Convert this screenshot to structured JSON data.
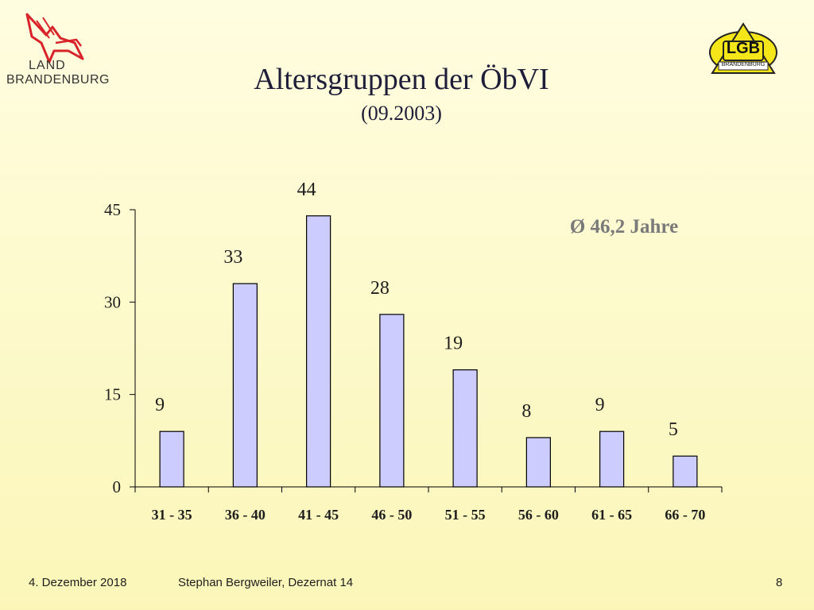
{
  "header": {
    "left_logo": {
      "line1": "LAND",
      "line2": "BRANDENBURG",
      "icon": "eagle-icon",
      "color": "#d8232a"
    },
    "right_logo": {
      "name": "LGB",
      "sub": "BRANDENBURG",
      "icon": "triangle-icon"
    }
  },
  "colors": {
    "bar_fill": "#ccccff",
    "bar_stroke": "#000000",
    "annotation": "#7a7a7a",
    "background": "#fdf9c8"
  },
  "chart_data": {
    "type": "bar",
    "title": "Altersgruppen der ÖbVI",
    "subtitle": "(09.2003)",
    "categories": [
      "31 - 35",
      "36 - 40",
      "41 - 45",
      "46 - 50",
      "51 - 55",
      "56 - 60",
      "61 - 65",
      "66 - 70"
    ],
    "values": [
      9,
      33,
      44,
      28,
      19,
      8,
      9,
      5
    ],
    "data_labels": [
      "9",
      "33",
      "44",
      "28",
      "19",
      "8",
      "9",
      "5"
    ],
    "ylim": [
      0,
      45
    ],
    "yticks": [
      0,
      15,
      30,
      45
    ],
    "grid": false,
    "annotation": "Ø 46,2 Jahre",
    "xlabel": "",
    "ylabel": ""
  },
  "footer": {
    "date": "4. Dezember 2018",
    "author": "Stephan Bergweiler, Dezernat 14",
    "page": "8"
  }
}
